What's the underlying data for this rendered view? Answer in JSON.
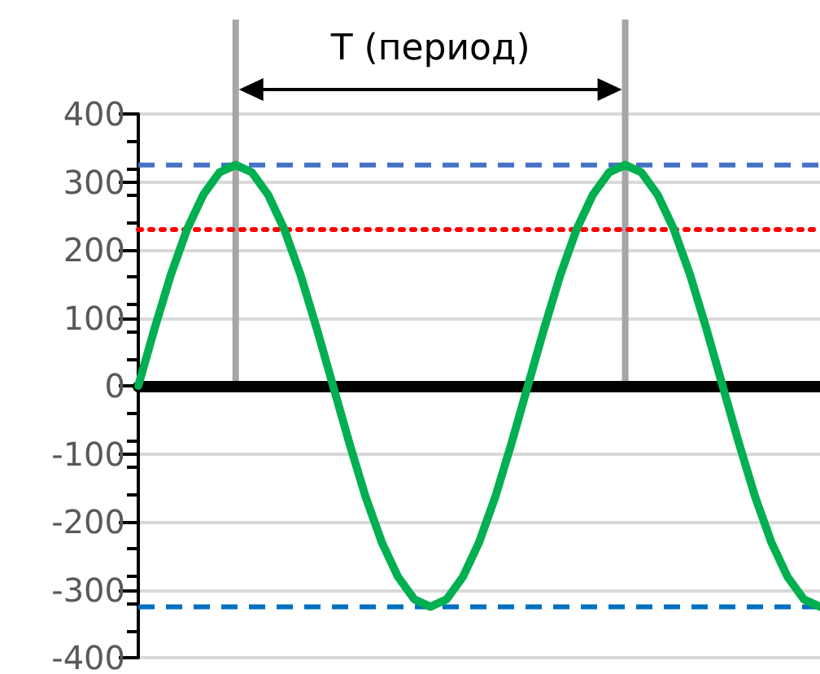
{
  "chart_data": {
    "type": "line",
    "annotations": [
      "T (период)"
    ],
    "categories": [
      null,
      null,
      null,
      null,
      null,
      null,
      null,
      null,
      null,
      null,
      null,
      null,
      null,
      null,
      null,
      null,
      null,
      null,
      null,
      null,
      null,
      null,
      null,
      null,
      null,
      null,
      null,
      null,
      null,
      null,
      null,
      null,
      null,
      null,
      null,
      null,
      null,
      null,
      null,
      null,
      null,
      null,
      null
    ],
    "series": [
      {
        "color": "#00b050",
        "values": [
          0,
          84,
          163,
          230,
          281,
          314,
          325,
          314,
          281,
          230,
          163,
          84,
          0,
          -84,
          -163,
          -230,
          -281,
          -314,
          -325,
          -314,
          -281,
          -230,
          -163,
          -84,
          0,
          84,
          163,
          230,
          281,
          314,
          325,
          314,
          281,
          230,
          163,
          84,
          0,
          -84,
          -163,
          -230,
          -281,
          -314,
          -325
        ]
      }
    ],
    "ylim": [
      -400,
      400
    ],
    "yticks": [
      -400,
      -300,
      -200,
      -100,
      0,
      100,
      200,
      300,
      400
    ],
    "ref_lines": [
      {
        "axis": "y",
        "value": 325,
        "color": "#4472c4",
        "line_style": "dashed"
      },
      {
        "axis": "y",
        "value": 230,
        "color": "#ff0000",
        "line_style": "dotted"
      },
      {
        "axis": "y",
        "value": -325,
        "color": "#0070c0",
        "line_style": "dashed"
      }
    ],
    "grid": "y",
    "marker": "none",
    "line_style": "solid",
    "tick_labels": "y"
  }
}
